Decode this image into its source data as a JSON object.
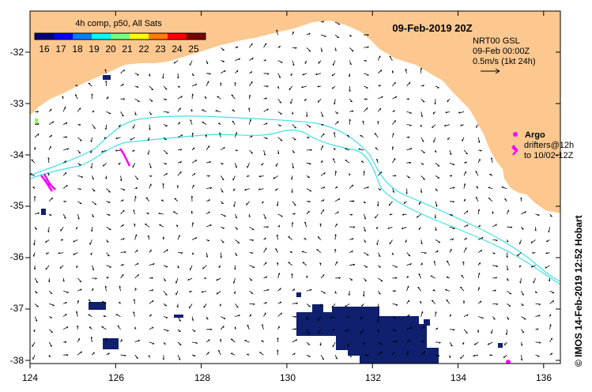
{
  "title": "09-Feb-2019 20Z",
  "colorbar": {
    "label": "4h comp, p50, All Sats",
    "ticks": [
      "16",
      "17",
      "18",
      "19",
      "20",
      "21",
      "22",
      "23",
      "24",
      "25"
    ],
    "colors": [
      "#00007f",
      "#0000ff",
      "#007fff",
      "#00ffff",
      "#7fff7f",
      "#ffff00",
      "#ff7f00",
      "#ff0000",
      "#7f0000"
    ]
  },
  "product": {
    "name": "NRT00 GSL",
    "time": "09-Feb 00:00Z",
    "scale": "0.5m/s (1kt 24h)"
  },
  "argo": {
    "label": "Argo",
    "drifters_line1": "drifters@12h",
    "drifters_line2": "to 10/02-12Z",
    "color": "#ff00ff"
  },
  "credit": "© IMOS 14-Feb-2019 12:52 Hobart",
  "axes": {
    "lon_ticks": [
      "124",
      "126",
      "128",
      "130",
      "132",
      "134",
      "136"
    ],
    "lat_ticks": [
      "-32",
      "-33",
      "-34",
      "-35",
      "-36",
      "-37",
      "-38"
    ]
  },
  "colors": {
    "land": "#fcc890",
    "frame": "#000000",
    "contour": "#40e0e8",
    "sst_blob": "#10206e"
  }
}
